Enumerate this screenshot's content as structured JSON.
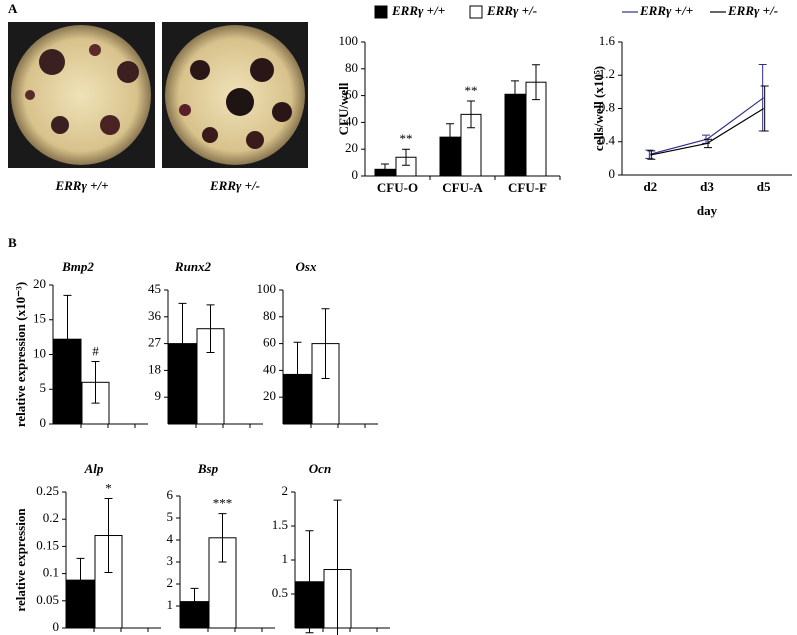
{
  "panel_labels": [
    "A",
    "B"
  ],
  "photos": [
    {
      "caption": "ERRγ +/+"
    },
    {
      "caption": "ERRγ +/-"
    }
  ],
  "chart_data": [
    {
      "type": "bar",
      "y_label": "CFU/well",
      "categories": [
        "CFU-O",
        "CFU-A",
        "CFU-F"
      ],
      "series": [
        {
          "name": "ERRγ +/+",
          "color": "#000000",
          "values": [
            5,
            29,
            61
          ],
          "errors": [
            4,
            10,
            10
          ],
          "significance": [
            null,
            null,
            null
          ]
        },
        {
          "name": "ERRγ +/-",
          "color": "#ffffff",
          "values": [
            14,
            46,
            70
          ],
          "errors": [
            6,
            10,
            13
          ],
          "significance": [
            "**",
            "**",
            null
          ]
        }
      ],
      "ylim": [
        0,
        100
      ],
      "yticks": [
        0,
        20,
        40,
        60,
        80,
        100
      ]
    },
    {
      "type": "line",
      "y_label": "cells/well (x10⁵)",
      "x_label": "day",
      "categories": [
        "d2",
        "d3",
        "d5"
      ],
      "series": [
        {
          "name": "ERRγ +/+",
          "color": "#2e2e8c",
          "values": [
            0.25,
            0.43,
            0.93
          ],
          "errors": [
            0.05,
            0.05,
            0.4
          ]
        },
        {
          "name": "ERRγ +/-",
          "color": "#000000",
          "values": [
            0.24,
            0.38,
            0.8
          ],
          "errors": [
            0.05,
            0.05,
            0.27
          ]
        }
      ],
      "ylim": [
        0,
        1.6
      ],
      "yticks": [
        0,
        0.4,
        0.8,
        1.2,
        1.6
      ]
    },
    {
      "type": "bar",
      "title": "Bmp2",
      "y_label": "relative expression (x10⁻³)",
      "series": [
        {
          "color": "#000000",
          "values": [
            12.2
          ],
          "errors": [
            6.3
          ],
          "significance": [
            null
          ]
        },
        {
          "color": "#ffffff",
          "values": [
            6
          ],
          "errors": [
            3
          ],
          "significance": [
            "#"
          ]
        }
      ],
      "ylim": [
        0,
        20
      ],
      "yticks": [
        0,
        5,
        10,
        15,
        20
      ]
    },
    {
      "type": "bar",
      "title": "Runx2",
      "series": [
        {
          "color": "#000000",
          "values": [
            27
          ],
          "errors": [
            13.5
          ],
          "significance": [
            null
          ]
        },
        {
          "color": "#ffffff",
          "values": [
            32
          ],
          "errors": [
            8
          ],
          "significance": [
            null
          ]
        }
      ],
      "ylim": [
        0,
        45
      ],
      "yticks": [
        9,
        18,
        27,
        36,
        45
      ]
    },
    {
      "type": "bar",
      "title": "Osx",
      "series": [
        {
          "color": "#000000",
          "values": [
            37
          ],
          "errors": [
            24
          ],
          "significance": [
            null
          ]
        },
        {
          "color": "#ffffff",
          "values": [
            60
          ],
          "errors": [
            26
          ],
          "significance": [
            null
          ]
        }
      ],
      "ylim": [
        0,
        100
      ],
      "yticks": [
        20,
        40,
        60,
        80,
        100
      ]
    },
    {
      "type": "bar",
      "title": "Alp",
      "y_label": "relative expression",
      "series": [
        {
          "color": "#000000",
          "values": [
            0.088
          ],
          "errors": [
            0.04
          ],
          "significance": [
            null
          ]
        },
        {
          "color": "#ffffff",
          "values": [
            0.17
          ],
          "errors": [
            0.068
          ],
          "significance": [
            "*"
          ]
        }
      ],
      "ylim": [
        0,
        0.25
      ],
      "yticks": [
        0,
        0.05,
        0.1,
        0.15,
        0.2,
        0.25
      ]
    },
    {
      "type": "bar",
      "title": "Bsp",
      "series": [
        {
          "color": "#000000",
          "values": [
            1.2
          ],
          "errors": [
            0.6
          ],
          "significance": [
            null
          ]
        },
        {
          "color": "#ffffff",
          "values": [
            4.1
          ],
          "errors": [
            1.1
          ],
          "significance": [
            "***"
          ]
        }
      ],
      "ylim": [
        0,
        6
      ],
      "yticks": [
        1,
        2,
        3,
        4,
        5,
        6
      ]
    },
    {
      "type": "bar",
      "title": "Ocn",
      "series": [
        {
          "color": "#000000",
          "values": [
            0.68
          ],
          "errors": [
            0.75
          ],
          "significance": [
            null
          ]
        },
        {
          "color": "#ffffff",
          "values": [
            0.86
          ],
          "errors": [
            1.02
          ],
          "significance": [
            null
          ]
        }
      ],
      "ylim": [
        0,
        2
      ],
      "yticks": [
        0.5,
        1,
        1.5,
        2
      ]
    }
  ]
}
